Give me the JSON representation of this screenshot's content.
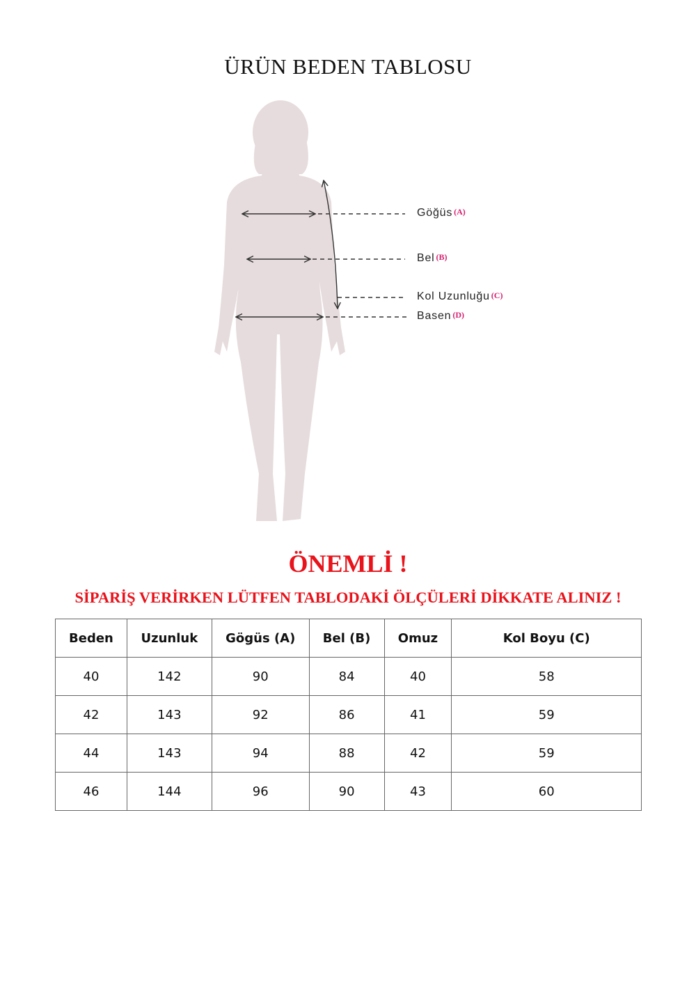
{
  "title": "ÜRÜN BEDEN TABLOSU",
  "figure": {
    "silhouette_color": "#e6dcdd",
    "labels": [
      {
        "name": "Göğüs",
        "code": "(A)"
      },
      {
        "name": "Bel",
        "code": "(B)"
      },
      {
        "name": "Kol Uzunluğu",
        "code": "(C)"
      },
      {
        "name": "Basen",
        "code": "(D)"
      }
    ],
    "code_color": "#d6206f"
  },
  "notice": {
    "heading": "ÖNEMLİ !",
    "text": "SİPARİŞ VERİRKEN LÜTFEN TABLODAKİ ÖLÇÜLERİ DİKKATE ALINIZ !",
    "color": "#e8131b"
  },
  "table": {
    "headers": [
      "Beden",
      "Uzunluk",
      "Gögüs (A)",
      "Bel (B)",
      "Omuz",
      "Kol Boyu (C)"
    ],
    "rows": [
      [
        "40",
        "142",
        "90",
        "84",
        "40",
        "58"
      ],
      [
        "42",
        "143",
        "92",
        "86",
        "41",
        "59"
      ],
      [
        "44",
        "143",
        "94",
        "88",
        "42",
        "59"
      ],
      [
        "46",
        "144",
        "96",
        "90",
        "43",
        "60"
      ]
    ]
  }
}
